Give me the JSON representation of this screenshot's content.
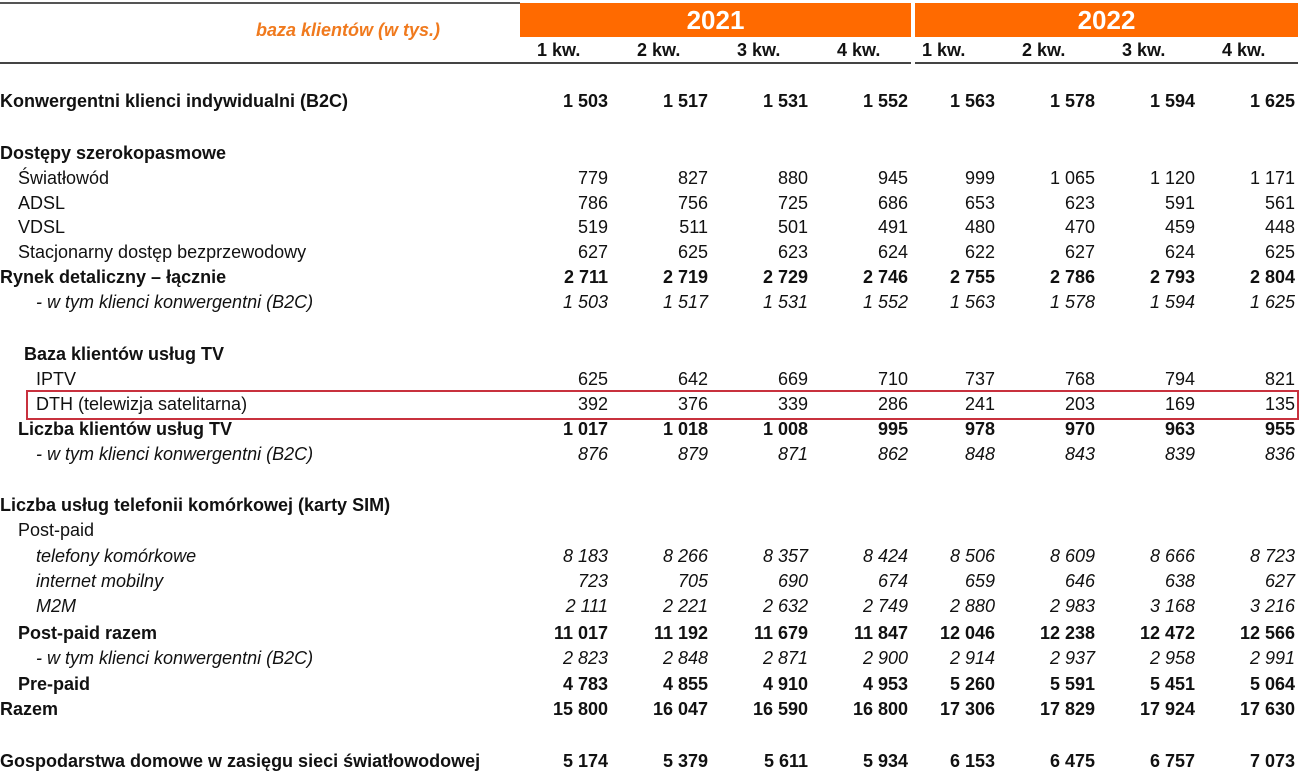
{
  "header": {
    "title": "baza klientów (w tys.)",
    "years": [
      "2021",
      "2022"
    ],
    "quarters": [
      "1 kw.",
      "2 kw.",
      "3 kw.",
      "4 kw.",
      "1 kw.",
      "2 kw.",
      "3 kw.",
      "4 kw."
    ],
    "accent_color": "#ff6a00",
    "highlight_color": "#c8313e"
  },
  "rows": [
    {
      "label": "Konwergentni klienci indywidualni (B2C)",
      "style": "bold",
      "values": [
        "1 503",
        "1 517",
        "1 531",
        "1 552",
        "1 563",
        "1 578",
        "1 594",
        "1 625"
      ]
    },
    {
      "label": "Dostępy szerokopasmowe",
      "style": "bold",
      "values": []
    },
    {
      "label": "Światłowód",
      "style": "normal",
      "values": [
        "779",
        "827",
        "880",
        "945",
        "999",
        "1 065",
        "1 120",
        "1 171"
      ]
    },
    {
      "label": "ADSL",
      "style": "normal",
      "values": [
        "786",
        "756",
        "725",
        "686",
        "653",
        "623",
        "591",
        "561"
      ]
    },
    {
      "label": "VDSL",
      "style": "normal",
      "values": [
        "519",
        "511",
        "501",
        "491",
        "480",
        "470",
        "459",
        "448"
      ]
    },
    {
      "label": "Stacjonarny dostęp bezprzewodowy",
      "style": "normal",
      "values": [
        "627",
        "625",
        "623",
        "624",
        "622",
        "627",
        "624",
        "625"
      ]
    },
    {
      "label": "Rynek detaliczny – łącznie",
      "style": "bold",
      "values": [
        "2 711",
        "2 719",
        "2 729",
        "2 746",
        "2 755",
        "2 786",
        "2 793",
        "2 804"
      ]
    },
    {
      "label": "- w tym klienci konwergentni (B2C)",
      "style": "italic",
      "values": [
        "1 503",
        "1 517",
        "1 531",
        "1 552",
        "1 563",
        "1 578",
        "1 594",
        "1 625"
      ]
    },
    {
      "label": "Baza klientów usług TV",
      "style": "bold",
      "values": []
    },
    {
      "label": "IPTV",
      "style": "normal",
      "values": [
        "625",
        "642",
        "669",
        "710",
        "737",
        "768",
        "794",
        "821"
      ]
    },
    {
      "label": "DTH (telewizja satelitarna)",
      "style": "normal",
      "highlighted": true,
      "values": [
        "392",
        "376",
        "339",
        "286",
        "241",
        "203",
        "169",
        "135"
      ]
    },
    {
      "label": "Liczba klientów usług TV",
      "style": "bold",
      "values": [
        "1 017",
        "1 018",
        "1 008",
        "995",
        "978",
        "970",
        "963",
        "955"
      ]
    },
    {
      "label": "- w tym klienci konwergentni (B2C)",
      "style": "italic",
      "values": [
        "876",
        "879",
        "871",
        "862",
        "848",
        "843",
        "839",
        "836"
      ]
    },
    {
      "label": "Liczba usług telefonii komórkowej (karty SIM)",
      "style": "bold",
      "values": []
    },
    {
      "label": "Post-paid",
      "style": "normal",
      "values": []
    },
    {
      "label": "telefony komórkowe",
      "style": "italic",
      "values": [
        "8 183",
        "8 266",
        "8 357",
        "8 424",
        "8 506",
        "8 609",
        "8 666",
        "8 723"
      ]
    },
    {
      "label": "internet mobilny",
      "style": "italic",
      "values": [
        "723",
        "705",
        "690",
        "674",
        "659",
        "646",
        "638",
        "627"
      ]
    },
    {
      "label": "M2M",
      "style": "italic",
      "values": [
        "2 111",
        "2 221",
        "2 632",
        "2 749",
        "2 880",
        "2 983",
        "3 168",
        "3 216"
      ]
    },
    {
      "label": "Post-paid razem",
      "style": "bold",
      "values": [
        "11 017",
        "11 192",
        "11 679",
        "11 847",
        "12 046",
        "12 238",
        "12 472",
        "12 566"
      ]
    },
    {
      "label": "- w tym klienci konwergentni (B2C)",
      "style": "italic",
      "values": [
        "2 823",
        "2 848",
        "2 871",
        "2 900",
        "2 914",
        "2 937",
        "2 958",
        "2 991"
      ]
    },
    {
      "label": "Pre-paid",
      "style": "bold",
      "values": [
        "4 783",
        "4 855",
        "4 910",
        "4 953",
        "5 260",
        "5 591",
        "5 451",
        "5 064"
      ]
    },
    {
      "label": "Razem",
      "style": "bold",
      "values": [
        "15 800",
        "16 047",
        "16 590",
        "16 800",
        "17 306",
        "17 829",
        "17 924",
        "17 630"
      ]
    },
    {
      "label": "Gospodarstwa domowe w zasięgu sieci światłowodowej",
      "style": "bold",
      "values": [
        "5 174",
        "5 379",
        "5 611",
        "5 934",
        "6 153",
        "6 475",
        "6 757",
        "7 073"
      ]
    }
  ]
}
